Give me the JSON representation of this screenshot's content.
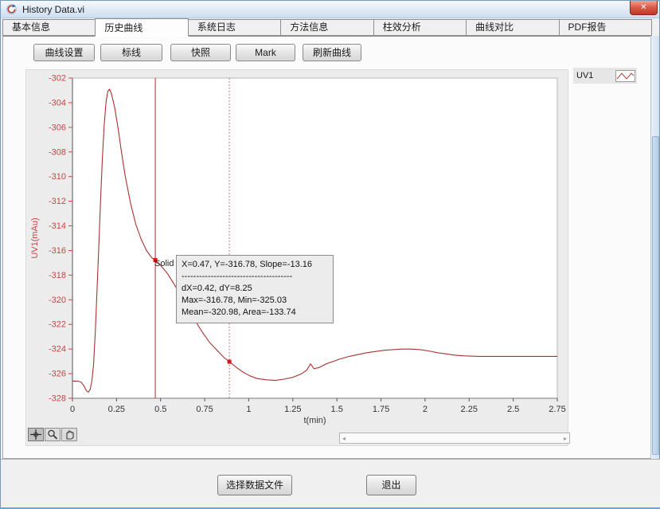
{
  "window": {
    "title": "History Data.vi",
    "close_glyph": "✕"
  },
  "tabs": [
    {
      "label": "基本信息"
    },
    {
      "label": "历史曲线"
    },
    {
      "label": "系统日志"
    },
    {
      "label": "方法信息"
    },
    {
      "label": "柱效分析"
    },
    {
      "label": "曲线对比"
    },
    {
      "label": "PDF报告"
    }
  ],
  "toolbar": {
    "buttons": [
      "曲线设置",
      "标线",
      "快照",
      "Mark",
      "刷新曲线"
    ]
  },
  "legend": {
    "name": "UV1"
  },
  "cursor": {
    "name": "Solid",
    "tooltip_line1": "X=0.47, Y=-316.78, Slope=-13.16",
    "tooltip_divider": "--------------------------------------",
    "tooltip_line2": "dX=0.42, dY=8.25",
    "tooltip_line3": "Max=-316.78, Min=-325.03",
    "tooltip_line4": "Mean=-320.98, Area=-133.74"
  },
  "footer": {
    "select_file_label": "选择数据文件",
    "exit_label": "退出"
  },
  "colors": {
    "plot_line": "#a83232",
    "axis_red": "#c84545",
    "cursor_solid": "#c42222",
    "cursor_dashed": "#b85050",
    "marker": "#dd1111"
  },
  "chart_data": {
    "type": "line",
    "title": "",
    "xlabel": "t(min)",
    "ylabel": "UV1(mAu)",
    "xlim": [
      0,
      2.75
    ],
    "ylim": [
      -328,
      -302
    ],
    "x_ticks": [
      0,
      0.25,
      0.5,
      0.75,
      1,
      1.25,
      1.5,
      1.75,
      2,
      2.25,
      2.5,
      2.75
    ],
    "y_ticks": [
      -302,
      -304,
      -306,
      -308,
      -310,
      -312,
      -314,
      -316,
      -318,
      -320,
      -322,
      -324,
      -326,
      -328
    ],
    "grid": false,
    "legend_position": "top-right-outside",
    "series": [
      {
        "name": "UV1",
        "color": "#a83232",
        "x": [
          0,
          0.03,
          0.05,
          0.065,
          0.08,
          0.09,
          0.1,
          0.11,
          0.12,
          0.13,
          0.14,
          0.15,
          0.16,
          0.17,
          0.18,
          0.19,
          0.2,
          0.21,
          0.22,
          0.24,
          0.26,
          0.28,
          0.3,
          0.33,
          0.36,
          0.39,
          0.42,
          0.45,
          0.47,
          0.5,
          0.54,
          0.58,
          0.62,
          0.66,
          0.7,
          0.74,
          0.78,
          0.82,
          0.86,
          0.89,
          0.93,
          0.97,
          1.01,
          1.05,
          1.1,
          1.15,
          1.2,
          1.25,
          1.3,
          1.33,
          1.35,
          1.37,
          1.4,
          1.44,
          1.48,
          1.52,
          1.57,
          1.62,
          1.67,
          1.72,
          1.77,
          1.82,
          1.87,
          1.92,
          1.97,
          2.02,
          2.07,
          2.12,
          2.17,
          2.22,
          2.3,
          2.4,
          2.5,
          2.6,
          2.7,
          2.75
        ],
        "y": [
          -326.6,
          -326.6,
          -326.7,
          -327.0,
          -327.4,
          -327.5,
          -327.3,
          -326.6,
          -325.2,
          -322.5,
          -319.0,
          -315.5,
          -311.8,
          -308.5,
          -305.8,
          -304.0,
          -303.1,
          -302.9,
          -303.2,
          -304.4,
          -306.2,
          -308.2,
          -310.0,
          -312.2,
          -313.9,
          -315.1,
          -316.0,
          -316.6,
          -316.78,
          -317.2,
          -317.9,
          -318.8,
          -319.8,
          -320.8,
          -321.8,
          -322.7,
          -323.5,
          -324.1,
          -324.7,
          -325.03,
          -325.5,
          -325.9,
          -326.2,
          -326.4,
          -326.5,
          -326.55,
          -326.45,
          -326.3,
          -326.0,
          -325.7,
          -325.2,
          -325.6,
          -325.5,
          -325.2,
          -325.0,
          -324.8,
          -324.6,
          -324.45,
          -324.3,
          -324.2,
          -324.1,
          -324.05,
          -324.0,
          -324.0,
          -324.05,
          -324.15,
          -324.3,
          -324.4,
          -324.5,
          -324.55,
          -324.6,
          -324.6,
          -324.6,
          -324.6,
          -324.6,
          -324.6
        ]
      }
    ],
    "cursors": [
      {
        "style": "solid",
        "x": 0.47,
        "y": -316.78
      },
      {
        "style": "dashed",
        "x": 0.89,
        "y": -325.03
      }
    ]
  }
}
